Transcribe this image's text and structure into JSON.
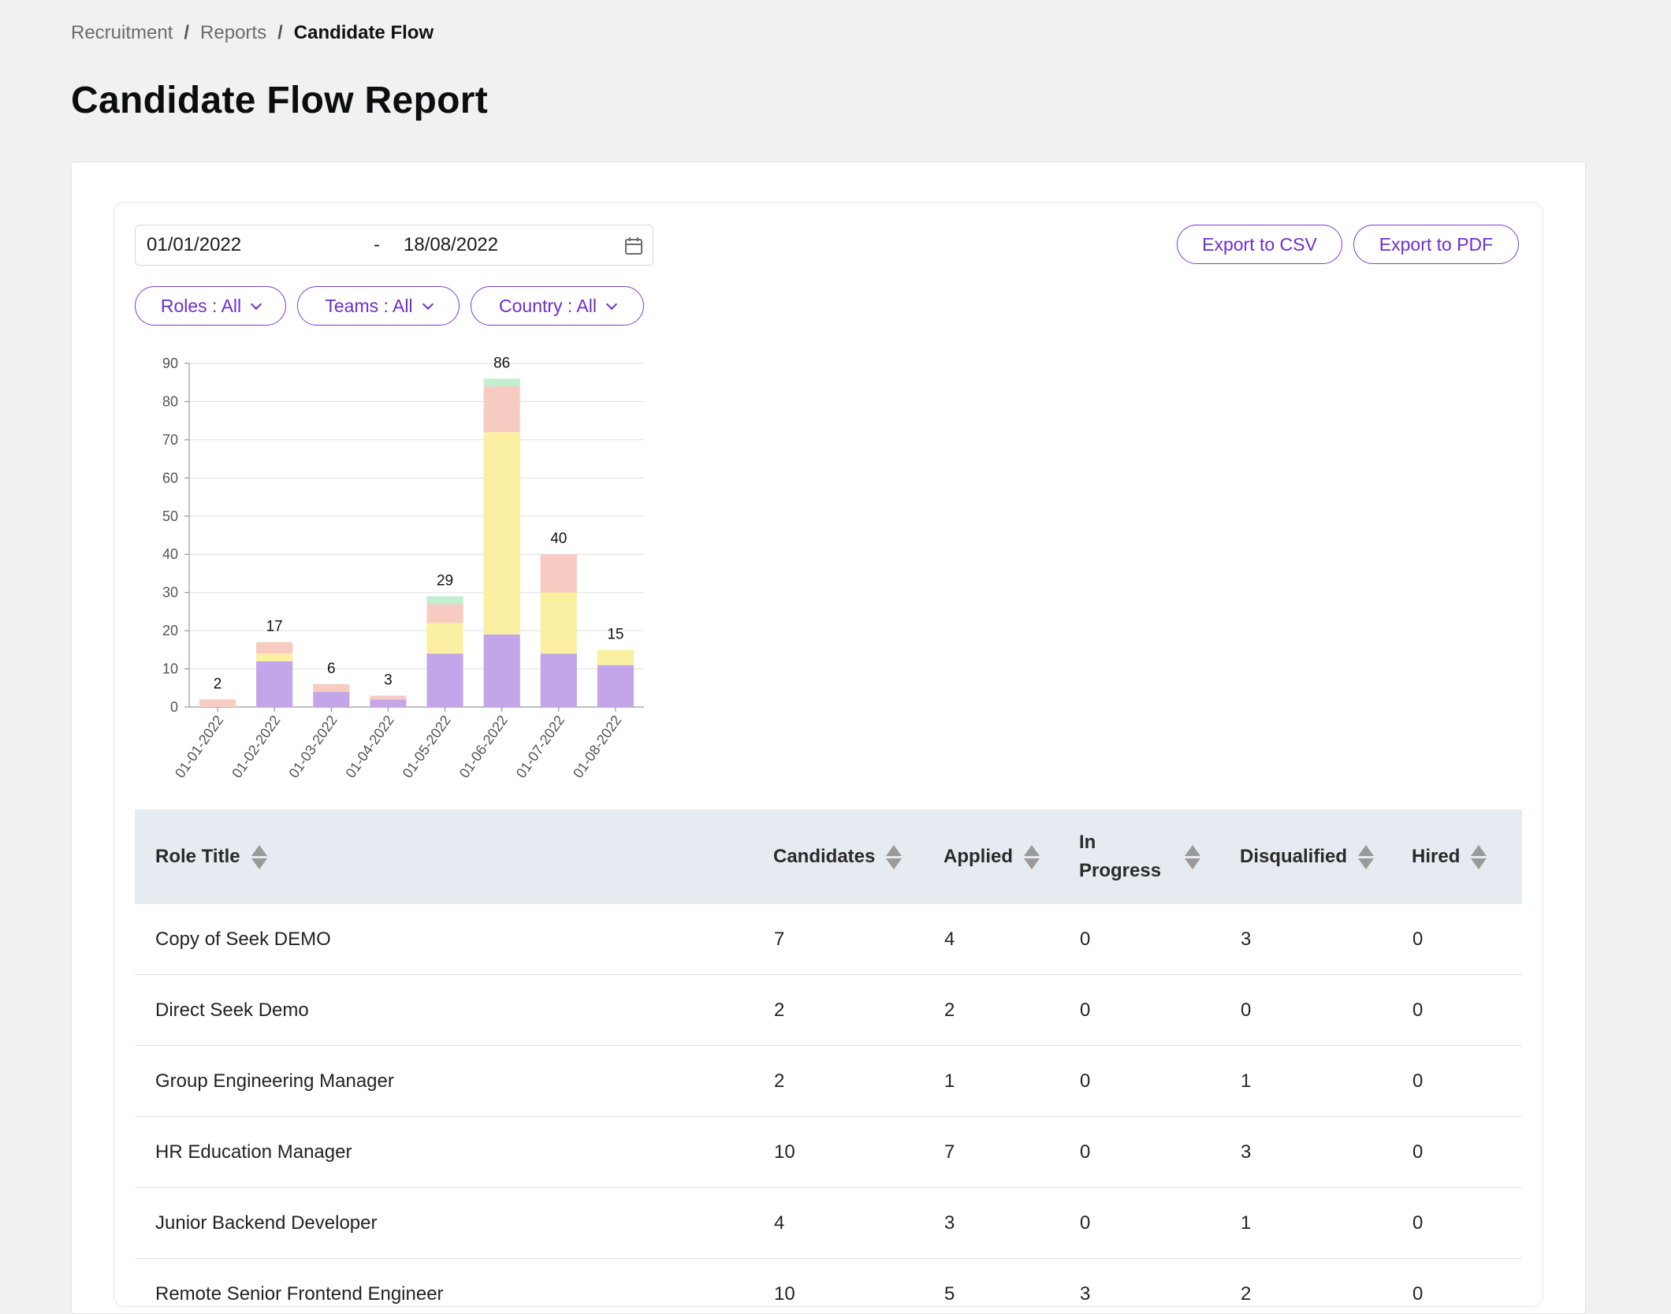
{
  "breadcrumb": {
    "items": [
      "Recruitment",
      "Reports",
      "Candidate Flow"
    ],
    "separator": "/"
  },
  "page_title": "Candidate Flow Report",
  "date_range": {
    "start": "01/01/2022",
    "separator": "-",
    "end": "18/08/2022",
    "icon": "calendar-icon"
  },
  "export": {
    "csv_label": "Export to CSV",
    "pdf_label": "Export to PDF"
  },
  "filters": {
    "roles": "Roles : All",
    "teams": "Teams : All",
    "country": "Country : All"
  },
  "colors": {
    "accent": "#6c2fd0",
    "applied": "#c3a6ea",
    "in_progress": "#fbf0a1",
    "disqualified": "#f7cbc2",
    "hired": "#c2eecf"
  },
  "chart_data": {
    "type": "bar",
    "stacked": true,
    "categories": [
      "01-01-2022",
      "01-02-2022",
      "01-03-2022",
      "01-04-2022",
      "01-05-2022",
      "01-06-2022",
      "01-07-2022",
      "01-08-2022"
    ],
    "series": [
      {
        "values": [
          0,
          12,
          4,
          2,
          14,
          19,
          14,
          11
        ],
        "color": "#c3a6ea"
      },
      {
        "values": [
          0,
          2,
          0,
          0,
          8,
          53,
          16,
          4
        ],
        "color": "#fbf0a1"
      },
      {
        "values": [
          2,
          3,
          2,
          1,
          5,
          12,
          10,
          0
        ],
        "color": "#f7cbc2"
      },
      {
        "values": [
          0,
          0,
          0,
          0,
          2,
          2,
          0,
          0
        ],
        "color": "#c2eecf"
      }
    ],
    "totals": [
      2,
      17,
      6,
      3,
      29,
      86,
      40,
      15
    ],
    "ylim": [
      0,
      90
    ],
    "yticks": [
      0,
      10,
      20,
      30,
      40,
      50,
      60,
      70,
      80,
      90
    ],
    "grid": true
  },
  "table": {
    "columns": [
      "Role Title",
      "Candidates",
      "Applied",
      "In Progress",
      "Disqualified",
      "Hired"
    ],
    "rows": [
      [
        "Copy of Seek DEMO",
        "7",
        "4",
        "0",
        "3",
        "0"
      ],
      [
        "Direct Seek Demo",
        "2",
        "2",
        "0",
        "0",
        "0"
      ],
      [
        "Group Engineering Manager",
        "2",
        "1",
        "0",
        "1",
        "0"
      ],
      [
        "HR Education Manager",
        "10",
        "7",
        "0",
        "3",
        "0"
      ],
      [
        "Junior Backend Developer",
        "4",
        "3",
        "0",
        "1",
        "0"
      ],
      [
        "Remote Senior Frontend Engineer",
        "10",
        "5",
        "3",
        "2",
        "0"
      ]
    ]
  }
}
